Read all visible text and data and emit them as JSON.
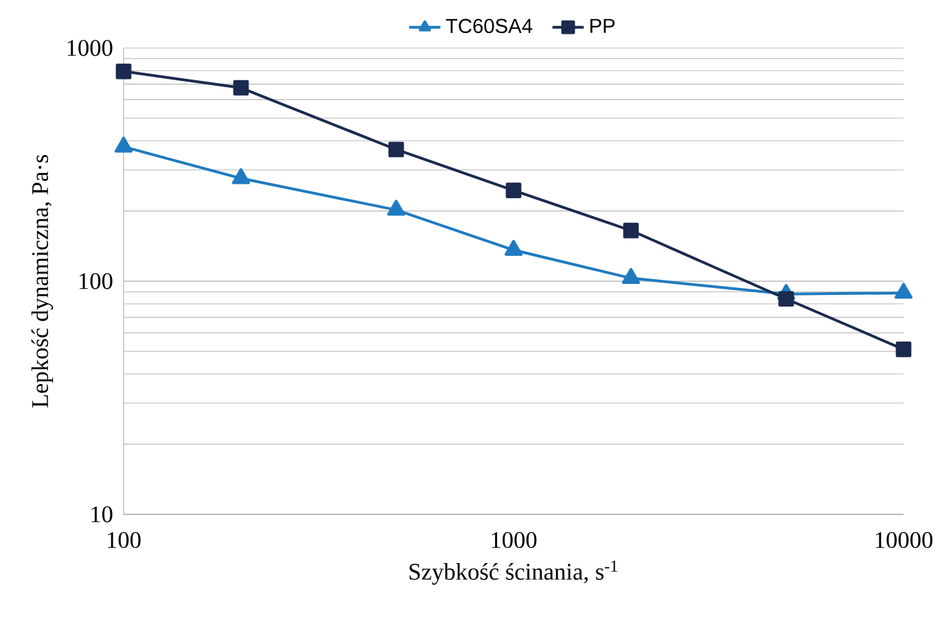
{
  "chart_data": {
    "type": "line",
    "xlabel": "Szybkość ścinania, s$^{-1}$",
    "ylabel": "Lepkość dynamiczna, Pa·s",
    "log": "xy",
    "grid": "y",
    "legend": "top",
    "xlim": [
      100,
      10000
    ],
    "xticks": [
      100,
      1000,
      10000
    ],
    "ylim": [
      10,
      1000
    ],
    "yticks": [
      10,
      100,
      1000
    ],
    "x": [
      100,
      200,
      500,
      1000,
      2000,
      5000,
      10000
    ],
    "series": [
      {
        "name": "TC60SA4",
        "color": "#1f7bc1",
        "marker": "triangle",
        "values": [
          377,
          276,
          202,
          136,
          103,
          88,
          89
        ]
      },
      {
        "name": "PP",
        "color": "#1b2a4e",
        "marker": "square",
        "values": [
          794,
          675,
          367,
          245,
          165,
          84,
          51
        ]
      }
    ]
  }
}
